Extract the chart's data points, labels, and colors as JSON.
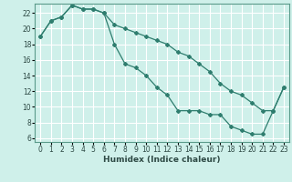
{
  "xlabel": "Humidex (Indice chaleur)",
  "bg_color": "#cff0ea",
  "grid_color": "#ffffff",
  "line_color": "#2e7d6e",
  "xlim": [
    -0.5,
    23.5
  ],
  "ylim": [
    5.5,
    23.2
  ],
  "xticks": [
    0,
    1,
    2,
    3,
    4,
    5,
    6,
    7,
    8,
    9,
    10,
    11,
    12,
    13,
    14,
    15,
    16,
    17,
    18,
    19,
    20,
    21,
    22,
    23
  ],
  "yticks": [
    6,
    8,
    10,
    12,
    14,
    16,
    18,
    20,
    22
  ],
  "line1_y": [
    19.0,
    21.0,
    21.5,
    23.0,
    22.5,
    22.5,
    22.0,
    20.5,
    20.0,
    19.5,
    19.0,
    18.5,
    18.0,
    17.0,
    16.5,
    15.5,
    14.5,
    13.0,
    12.0,
    11.5,
    10.5,
    9.5,
    9.5,
    12.5
  ],
  "line2_y": [
    19.0,
    21.0,
    21.5,
    23.0,
    22.5,
    22.5,
    22.0,
    18.0,
    15.5,
    15.0,
    14.0,
    12.5,
    11.5,
    9.5,
    9.5,
    9.5,
    9.0,
    9.0,
    7.5,
    7.0,
    6.5,
    6.5,
    9.5,
    12.5
  ],
  "tick_fontsize": 5.5,
  "xlabel_fontsize": 6.5
}
